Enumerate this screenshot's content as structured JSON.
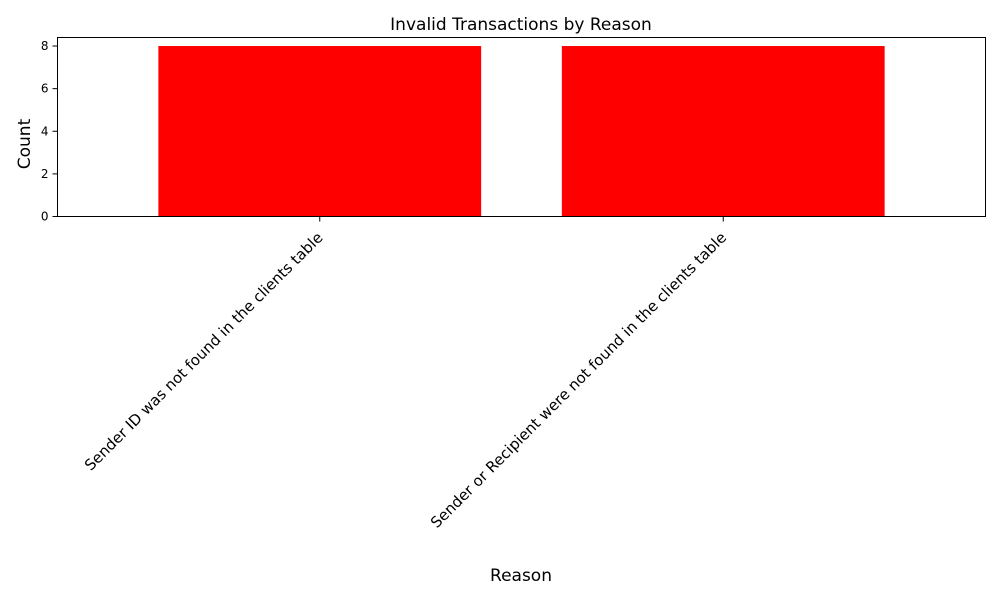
{
  "chart_data": {
    "type": "bar",
    "title": "Invalid Transactions by Reason",
    "xlabel": "Reason",
    "ylabel": "Count",
    "categories": [
      "Sender ID was not found in the clients table",
      "Sender or Recipient were not found in the clients table"
    ],
    "values": [
      8,
      8
    ],
    "ylim": [
      0,
      8.4
    ],
    "yticks": [
      0,
      2,
      4,
      6,
      8
    ],
    "grid": false,
    "legend": "none",
    "bar_color": "#ff0000"
  }
}
